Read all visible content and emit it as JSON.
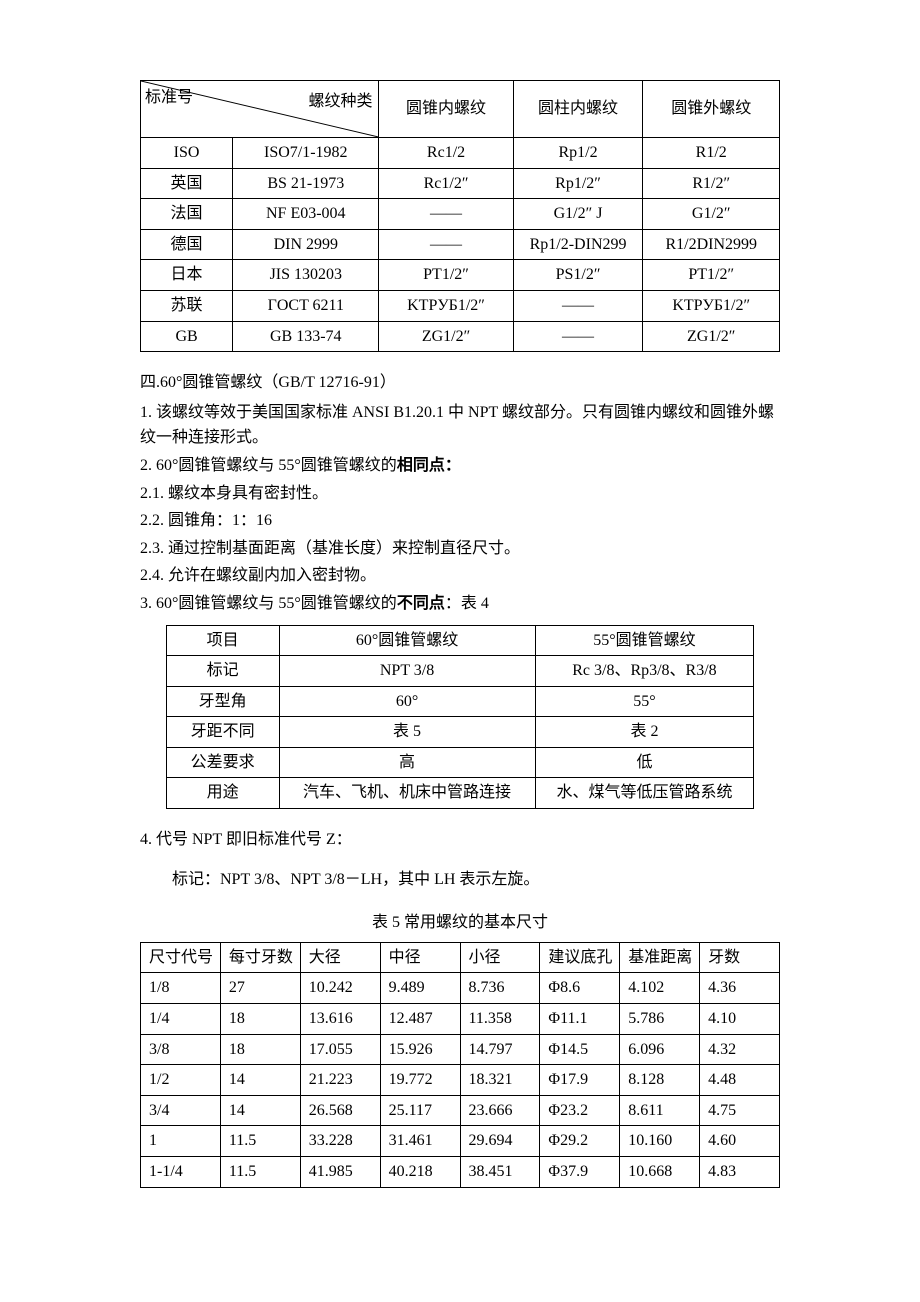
{
  "table1": {
    "header": {
      "left": "标准号",
      "right": "螺纹种类",
      "cols": [
        "圆锥内螺纹",
        "圆柱内螺纹",
        "圆锥外螺纹"
      ]
    },
    "rows": [
      [
        "ISO",
        "ISO7/1-1982",
        "Rc1/2",
        "Rp1/2",
        "R1/2"
      ],
      [
        "英国",
        "BS 21-1973",
        "Rc1/2″",
        "Rp1/2″",
        "R1/2″"
      ],
      [
        "法国",
        "NF E03-004",
        "——",
        "G1/2″ J",
        "G1/2″"
      ],
      [
        "德国",
        "DIN 2999",
        "——",
        "Rp1/2-DIN299",
        "R1/2DIN2999"
      ],
      [
        "日本",
        "JIS 130203",
        "PT1/2″",
        "PS1/2″",
        "PT1/2″"
      ],
      [
        "苏联",
        "ГOCT 6211",
        "KTPУБ1/2″",
        "——",
        "KTPУБ1/2″"
      ],
      [
        "GB",
        "GB 133-74",
        "ZG1/2″",
        "——",
        "ZG1/2″"
      ]
    ]
  },
  "section4_heading": "四.60°圆锥管螺纹（GB/T 12716-91）",
  "para1": "1. 该螺纹等效于美国国家标准 ANSI B1.20.1 中 NPT 螺纹部分。只有圆锥内螺纹和圆锥外螺纹一种连接形式。",
  "para2_lead": "2. 60°圆锥管螺纹与 55°圆锥管螺纹的",
  "para2_bold": "相同点：",
  "p21": "2.1.  螺纹本身具有密封性。",
  "p22": "2.2.  圆锥角：1：16",
  "p23": "2.3.  通过控制基面距离（基准长度）来控制直径尺寸。",
  "p24": "2.4.  允许在螺纹副内加入密封物。",
  "para3_lead": "3. 60°圆锥管螺纹与 55°圆锥管螺纹的",
  "para3_bold": "不同点",
  "para3_tail": "：表 4",
  "table2": {
    "header": [
      "项目",
      "60°圆锥管螺纹",
      "55°圆锥管螺纹"
    ],
    "rows": [
      [
        "标记",
        "NPT 3/8",
        "Rc 3/8、Rp3/8、R3/8"
      ],
      [
        "牙型角",
        "60°",
        "55°"
      ],
      [
        "牙距不同",
        "表 5",
        "表 2"
      ],
      [
        "公差要求",
        "高",
        "低"
      ],
      [
        "用途",
        "汽车、飞机、机床中管路连接",
        "水、煤气等低压管路系统"
      ]
    ]
  },
  "para4": "4. 代号 NPT 即旧标准代号 Z：",
  "para4b": "标记：NPT 3/8、NPT 3/8－LH，其中 LH 表示左旋。",
  "t5_title": "表 5   常用螺纹的基本尺寸",
  "table3": {
    "header": [
      "尺寸代号",
      "每寸牙数",
      "大径",
      "中径",
      "小径",
      "建议底孔",
      "基准距离",
      "牙数"
    ],
    "rows": [
      [
        "1/8",
        "27",
        "10.242",
        "9.489",
        "8.736",
        "Φ8.6",
        "4.102",
        "4.36"
      ],
      [
        "1/4",
        "18",
        "13.616",
        "12.487",
        "11.358",
        "Φ11.1",
        "5.786",
        "4.10"
      ],
      [
        "3/8",
        "18",
        "17.055",
        "15.926",
        "14.797",
        "Φ14.5",
        "6.096",
        "4.32"
      ],
      [
        "1/2",
        "14",
        "21.223",
        "19.772",
        "18.321",
        "Φ17.9",
        "8.128",
        "4.48"
      ],
      [
        "3/4",
        "14",
        "26.568",
        "25.117",
        "23.666",
        "Φ23.2",
        "8.611",
        "4.75"
      ],
      [
        "1",
        "11.5",
        "33.228",
        "31.461",
        "29.694",
        "Φ29.2",
        "10.160",
        "4.60"
      ],
      [
        "1-1/4",
        "11.5",
        "41.985",
        "40.218",
        "38.451",
        "Φ37.9",
        "10.668",
        "4.83"
      ]
    ]
  }
}
